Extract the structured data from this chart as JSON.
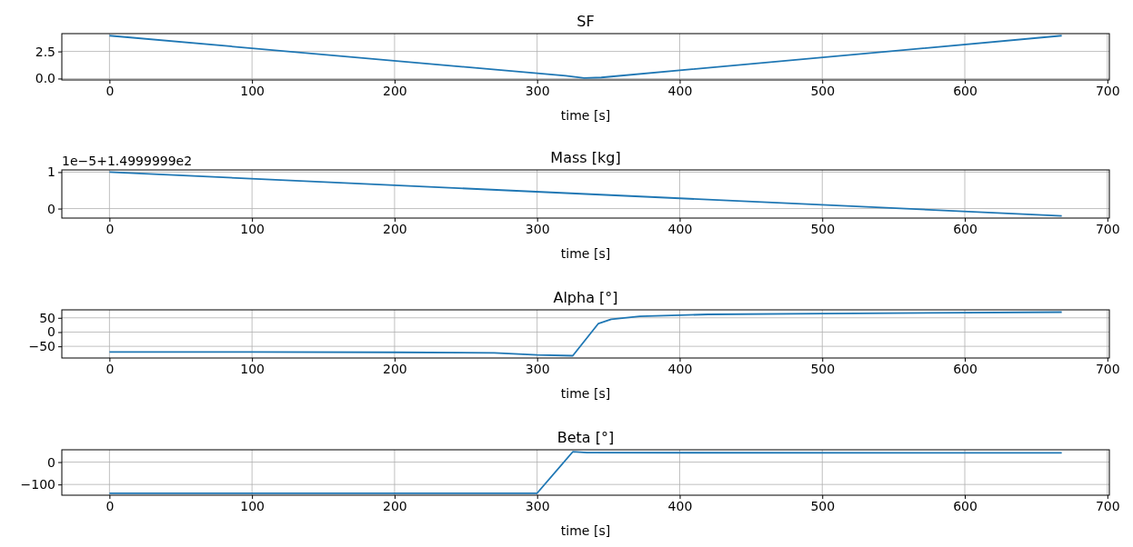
{
  "chart_data": [
    {
      "type": "line",
      "title": "SF",
      "xlabel": "time [s]",
      "x": [
        0,
        320,
        333,
        345,
        668
      ],
      "series": [
        {
          "color": "#1f77b4",
          "values": [
            3.95,
            0.25,
            0.05,
            0.1,
            3.95
          ]
        }
      ],
      "xlim": [
        -33.4,
        701.4
      ],
      "xticks": [
        0,
        100,
        200,
        300,
        400,
        500,
        600,
        700
      ],
      "ylim": [
        -0.13,
        4.14
      ],
      "yticks": [
        {
          "value": 0,
          "label": "0.0"
        },
        2.5
      ],
      "grid": true,
      "line_style": "solid"
    },
    {
      "type": "line",
      "title": "Mass [kg]",
      "xlabel": "time [s]",
      "annotations": [
        "1e−5+1.4999999e2"
      ],
      "x": [
        0,
        668
      ],
      "series": [
        {
          "color": "#1f77b4",
          "values": [
            1.0,
            -0.2
          ]
        }
      ],
      "xlim": [
        -33.4,
        701.4
      ],
      "xticks": [
        0,
        100,
        200,
        300,
        400,
        500,
        600,
        700
      ],
      "ylim": [
        -0.26,
        1.06
      ],
      "yticks": [
        0,
        1
      ],
      "grid": true,
      "line_style": "solid"
    },
    {
      "type": "line",
      "title": "Alpha [°]",
      "xlabel": "time [s]",
      "x": [
        0,
        100,
        200,
        270,
        300,
        325,
        343,
        352,
        372,
        400,
        420,
        500,
        600,
        668
      ],
      "series": [
        {
          "color": "#1f77b4",
          "values": [
            -70,
            -70,
            -71,
            -73,
            -80,
            -83,
            30,
            45,
            55,
            59,
            62,
            65,
            68,
            70
          ]
        }
      ],
      "xlim": [
        -33.4,
        701.4
      ],
      "xticks": [
        0,
        100,
        200,
        300,
        400,
        500,
        600,
        700
      ],
      "ylim": [
        -91,
        78
      ],
      "yticks": [
        {
          "value": -50,
          "label": "−50"
        },
        0,
        50
      ],
      "grid": true,
      "line_style": "solid"
    },
    {
      "type": "line",
      "title": "Beta [°]",
      "xlabel": "time [s]",
      "x": [
        0,
        300,
        325,
        335,
        668
      ],
      "series": [
        {
          "color": "#1f77b4",
          "values": [
            -139,
            -139,
            46,
            42,
            41
          ]
        }
      ],
      "xlim": [
        -33.4,
        701.4
      ],
      "xticks": [
        0,
        100,
        200,
        300,
        400,
        500,
        600,
        700
      ],
      "ylim": [
        -148,
        55
      ],
      "yticks": [
        {
          "value": -100,
          "label": "−100"
        },
        0
      ],
      "grid": true,
      "line_style": "solid"
    }
  ]
}
